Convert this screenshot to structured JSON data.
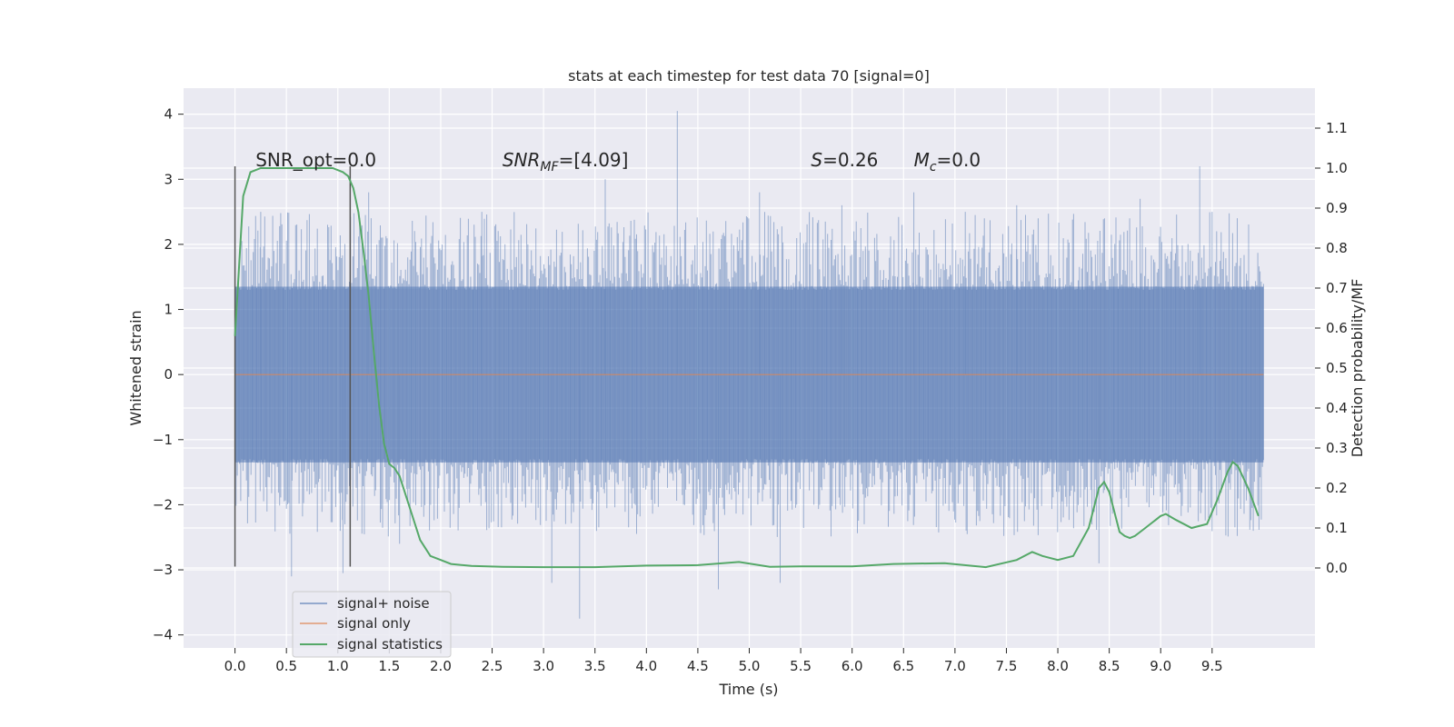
{
  "chart_data": {
    "type": "line",
    "title": "stats at each timestep for test data 70 [signal=0]",
    "xlabel": "Time (s)",
    "ylabel": "Whitened strain",
    "ylabel_right": "Detection probability/MF",
    "xlim": [
      -0.5,
      10.5
    ],
    "ylim": [
      -4.2,
      4.4
    ],
    "ylim_right": [
      -0.2,
      1.2
    ],
    "x_ticks": [
      0.0,
      0.5,
      1.0,
      1.5,
      2.0,
      2.5,
      3.0,
      3.5,
      4.0,
      4.5,
      5.0,
      5.5,
      6.0,
      6.5,
      7.0,
      7.5,
      8.0,
      8.5,
      9.0,
      9.5
    ],
    "x_tick_labels": [
      "0.0",
      "0.5",
      "1.0",
      "1.5",
      "2.0",
      "2.5",
      "3.0",
      "3.5",
      "4.0",
      "4.5",
      "5.0",
      "5.5",
      "6.0",
      "6.5",
      "7.0",
      "7.5",
      "8.0",
      "8.5",
      "9.0",
      "9.5"
    ],
    "y_ticks": [
      -4,
      -3,
      -2,
      -1,
      0,
      1,
      2,
      3,
      4
    ],
    "y_tick_labels": [
      "−4",
      "−3",
      "−2",
      "−1",
      "0",
      "1",
      "2",
      "3",
      "4"
    ],
    "y_ticks_right": [
      0.0,
      0.1,
      0.2,
      0.3,
      0.4,
      0.5,
      0.6,
      0.7,
      0.8,
      0.9,
      1.0,
      1.1
    ],
    "y_tick_labels_right": [
      "0.0",
      "0.1",
      "0.2",
      "0.3",
      "0.4",
      "0.5",
      "0.6",
      "0.7",
      "0.8",
      "0.9",
      "1.0",
      "1.1"
    ],
    "grid": true,
    "legend_position": "lower-left",
    "series": [
      {
        "name": "signal+ noise",
        "color": "#4c72b0",
        "axis": "left",
        "kind": "noise-band",
        "x_range": [
          0.0,
          10.0
        ],
        "dense_band": [
          -1.35,
          1.35
        ],
        "spikes": [
          [
            0.25,
            2.5
          ],
          [
            0.55,
            -3.1
          ],
          [
            0.9,
            2.3
          ],
          [
            1.05,
            -3.05
          ],
          [
            1.3,
            2.8
          ],
          [
            1.6,
            -2.6
          ],
          [
            2.4,
            2.5
          ],
          [
            3.08,
            -3.2
          ],
          [
            3.35,
            -3.75
          ],
          [
            3.6,
            3.0
          ],
          [
            4.3,
            4.05
          ],
          [
            4.7,
            -3.3
          ],
          [
            5.1,
            2.8
          ],
          [
            5.3,
            -3.2
          ],
          [
            5.9,
            2.6
          ],
          [
            6.6,
            2.8
          ],
          [
            7.1,
            2.5
          ],
          [
            7.6,
            2.6
          ],
          [
            8.4,
            -2.9
          ],
          [
            8.8,
            2.7
          ],
          [
            9.38,
            3.2
          ],
          [
            9.5,
            2.5
          ],
          [
            9.9,
            -2.4
          ]
        ]
      },
      {
        "name": "signal only",
        "color": "#dd8452",
        "axis": "left",
        "x": [
          0.0,
          10.0
        ],
        "y": [
          0.0,
          0.0
        ]
      },
      {
        "name": "signal statistics",
        "color": "#55a868",
        "axis": "right",
        "x": [
          0.0,
          0.08,
          0.15,
          0.25,
          0.4,
          0.6,
          0.8,
          0.95,
          1.05,
          1.1,
          1.15,
          1.2,
          1.25,
          1.3,
          1.35,
          1.4,
          1.45,
          1.5,
          1.55,
          1.6,
          1.7,
          1.8,
          1.9,
          2.0,
          2.1,
          2.3,
          2.6,
          3.0,
          3.5,
          4.0,
          4.5,
          4.9,
          5.2,
          5.5,
          6.0,
          6.4,
          6.9,
          7.3,
          7.6,
          7.75,
          7.85,
          8.0,
          8.15,
          8.3,
          8.4,
          8.45,
          8.5,
          8.55,
          8.6,
          8.65,
          8.7,
          8.75,
          8.85,
          9.0,
          9.05,
          9.15,
          9.3,
          9.45,
          9.55,
          9.65,
          9.7,
          9.75,
          9.85,
          9.95
        ],
        "y": [
          0.58,
          0.93,
          0.99,
          1.0,
          1.0,
          1.0,
          1.0,
          1.0,
          0.99,
          0.98,
          0.95,
          0.89,
          0.79,
          0.68,
          0.54,
          0.41,
          0.31,
          0.26,
          0.25,
          0.23,
          0.15,
          0.07,
          0.03,
          0.02,
          0.01,
          0.005,
          0.003,
          0.002,
          0.002,
          0.006,
          0.007,
          0.015,
          0.003,
          0.004,
          0.004,
          0.01,
          0.012,
          0.002,
          0.02,
          0.04,
          0.03,
          0.02,
          0.03,
          0.1,
          0.2,
          0.215,
          0.19,
          0.14,
          0.09,
          0.08,
          0.075,
          0.08,
          0.1,
          0.13,
          0.135,
          0.12,
          0.1,
          0.11,
          0.17,
          0.24,
          0.265,
          0.255,
          0.2,
          0.13
        ]
      }
    ],
    "vertical_markers": [
      0.0,
      1.12
    ],
    "vertical_marker_range": [
      -2.95,
      3.2
    ],
    "annotations": [
      {
        "text": "SNR_opt=0.0",
        "x": 0.2,
        "y": 3.3
      },
      {
        "prefix": "SNR",
        "sub": "MF",
        "suffix": "=[4.09]",
        "x": 2.6,
        "y": 3.3
      },
      {
        "prefix": "S",
        "suffix": "=0.26",
        "x": 5.6,
        "y": 3.3
      },
      {
        "prefix": "M",
        "sub": "c",
        "suffix": "=0.0",
        "x": 6.6,
        "y": 3.3
      }
    ]
  }
}
